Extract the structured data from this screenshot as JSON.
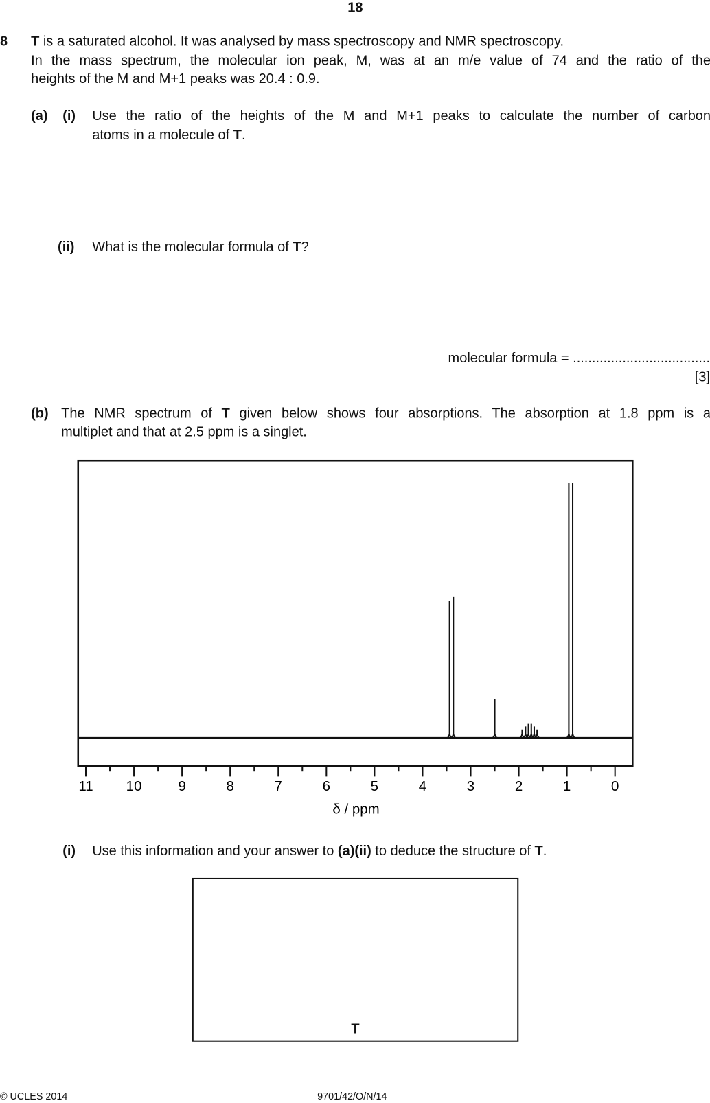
{
  "page_number": "18",
  "question": {
    "number": "8",
    "intro_line1": [
      "T",
      " is a saturated alcohol. It was analysed by mass spectroscopy and NMR spectroscopy."
    ],
    "intro_line2": "In the mass spectrum, the molecular ion peak, M, was at an m/e value of 74 and the ratio of the",
    "intro_line3": "heights of the M and M+1 peaks was 20.4 : 0.9.",
    "a_label": "(a)",
    "a_i_label": "(i)",
    "a_i_text1": "Use the ratio of the heights of the M and M+1 peaks to calculate the number of carbon",
    "a_i_text2": [
      "atoms in a molecule of ",
      "T",
      "."
    ],
    "a_ii_label": "(ii)",
    "a_ii_text": [
      "What is the molecular formula of ",
      "T",
      "?"
    ],
    "answer_line": "molecular formula = ....................................",
    "marks_a": "[3]",
    "b_label": "(b)",
    "b_text1": [
      "The NMR spectrum of ",
      "T",
      " given below shows four absorptions. The absorption at 1.8 ppm is a"
    ],
    "b_text2": "multiplet and that at 2.5 ppm is a singlet.",
    "b_i_label": "(i)",
    "b_i_text": [
      "Use this information and your answer to ",
      "(a)(ii)",
      " to deduce the structure of ",
      "T",
      "."
    ],
    "answer_box_label": "T"
  },
  "chart_data": {
    "type": "line",
    "title": "",
    "xlabel": "δ / ppm",
    "ylabel": "",
    "xlim": [
      11,
      0
    ],
    "x_reversed": true,
    "x_ticks": [
      "11",
      "10",
      "9",
      "8",
      "7",
      "6",
      "5",
      "4",
      "3",
      "2",
      "1",
      "0"
    ],
    "grid": false,
    "peaks": [
      {
        "ppm": 3.44,
        "relative_height": 53.7
      },
      {
        "ppm": 3.36,
        "relative_height": 55.3
      },
      {
        "ppm": 2.5,
        "relative_height": 15.2
      },
      {
        "ppm": 1.93,
        "relative_height": 3.3
      },
      {
        "ppm": 1.86,
        "relative_height": 4.5
      },
      {
        "ppm": 1.8,
        "relative_height": 5.5
      },
      {
        "ppm": 1.74,
        "relative_height": 5.5
      },
      {
        "ppm": 1.68,
        "relative_height": 4.5
      },
      {
        "ppm": 1.62,
        "relative_height": 3.3
      },
      {
        "ppm": 0.96,
        "relative_height": 100
      },
      {
        "ppm": 0.88,
        "relative_height": 100
      }
    ]
  },
  "footer": {
    "copyright": "© UCLES 2014",
    "code": "9701/42/O/N/14"
  }
}
